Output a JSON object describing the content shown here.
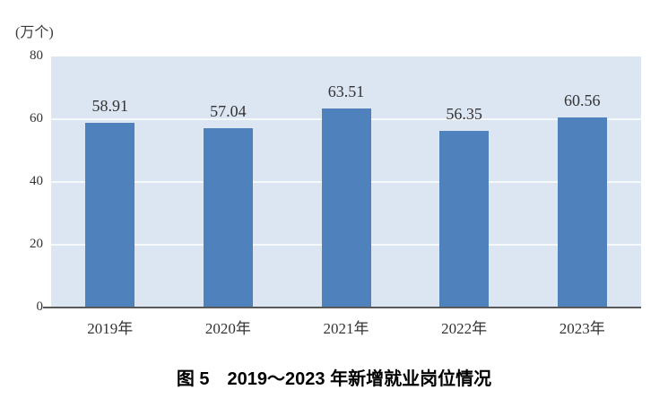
{
  "chart_data": {
    "type": "bar",
    "categories": [
      "2019年",
      "2020年",
      "2021年",
      "2022年",
      "2023年"
    ],
    "values": [
      58.91,
      57.04,
      63.51,
      56.35,
      60.56
    ],
    "value_labels": [
      "58.91",
      "57.04",
      "63.51",
      "56.35",
      "60.56"
    ],
    "unit_label": "(万个)",
    "caption": "图 5　2019～2023 年新增就业岗位情况",
    "ylim": [
      0,
      80
    ],
    "y_ticks": [
      0,
      20,
      40,
      60,
      80
    ],
    "gridline_values": [
      20,
      40,
      60
    ],
    "grid": true,
    "legend": "none",
    "xlabel": "",
    "ylabel": "万个",
    "colors": {
      "bar": "#4f81bd",
      "plot_background": "#dce6f2",
      "gridline": "#f5f9fc",
      "axis_line": "#595959",
      "text": "#333333"
    }
  }
}
